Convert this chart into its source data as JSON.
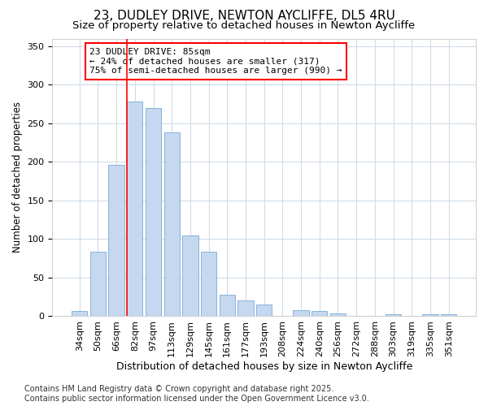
{
  "title": "23, DUDLEY DRIVE, NEWTON AYCLIFFE, DL5 4RU",
  "subtitle": "Size of property relative to detached houses in Newton Aycliffe",
  "xlabel": "Distribution of detached houses by size in Newton Aycliffe",
  "ylabel": "Number of detached properties",
  "categories": [
    "34sqm",
    "50sqm",
    "66sqm",
    "82sqm",
    "97sqm",
    "113sqm",
    "129sqm",
    "145sqm",
    "161sqm",
    "177sqm",
    "193sqm",
    "208sqm",
    "224sqm",
    "240sqm",
    "256sqm",
    "272sqm",
    "288sqm",
    "303sqm",
    "319sqm",
    "335sqm",
    "351sqm"
  ],
  "values": [
    6,
    83,
    196,
    278,
    270,
    238,
    104,
    83,
    27,
    20,
    15,
    0,
    7,
    6,
    3,
    0,
    0,
    2,
    0,
    2,
    2
  ],
  "bar_color": "#c5d8f0",
  "bar_edge_color": "#7aaad4",
  "annotation_text": "23 DUDLEY DRIVE: 85sqm\n← 24% of detached houses are smaller (317)\n75% of semi-detached houses are larger (990) →",
  "annotation_box_color": "white",
  "annotation_border_color": "red",
  "red_line_index": 3,
  "ylim": [
    0,
    360
  ],
  "yticks": [
    0,
    50,
    100,
    150,
    200,
    250,
    300,
    350
  ],
  "bg_color": "#ffffff",
  "plot_bg_color": "#ffffff",
  "grid_color": "#d0dce8",
  "footer": "Contains HM Land Registry data © Crown copyright and database right 2025.\nContains public sector information licensed under the Open Government Licence v3.0.",
  "title_fontsize": 11,
  "subtitle_fontsize": 9.5,
  "xlabel_fontsize": 9,
  "ylabel_fontsize": 8.5,
  "tick_fontsize": 8,
  "annotation_fontsize": 8,
  "footer_fontsize": 7
}
